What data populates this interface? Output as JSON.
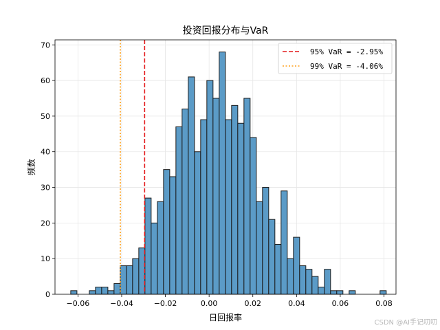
{
  "chart_data": {
    "type": "bar",
    "title": "投资回报分布与VaR",
    "xlabel": "日回报率",
    "ylabel": "频数",
    "xlim": [
      -0.0705,
      0.0855
    ],
    "ylim": [
      0,
      71.4
    ],
    "xticks": [
      -0.06,
      -0.04,
      -0.02,
      0.0,
      0.02,
      0.04,
      0.06,
      0.08
    ],
    "xtick_labels": [
      "−0.06",
      "−0.04",
      "−0.02",
      "0.00",
      "0.02",
      "0.04",
      "0.06",
      "0.08"
    ],
    "yticks": [
      0,
      10,
      20,
      30,
      40,
      50,
      60,
      70
    ],
    "ytick_labels": [
      "0",
      "10",
      "20",
      "30",
      "40",
      "50",
      "60",
      "70"
    ],
    "grid": true,
    "bin_start": -0.0633,
    "bin_width": 0.00283,
    "counts": [
      1,
      0,
      0,
      1,
      2,
      2,
      1,
      3,
      8,
      8,
      10,
      13,
      27,
      20,
      26,
      35,
      33,
      47,
      52,
      61,
      40,
      49,
      60,
      55,
      68,
      49,
      53,
      48,
      55,
      44,
      26,
      30,
      21,
      14,
      29,
      10,
      16,
      8,
      7,
      5,
      2,
      7,
      1,
      1,
      0,
      1,
      0,
      0,
      0,
      0,
      1
    ],
    "bar_color": "#5b9bc7",
    "edge_color": "#1a1a1a",
    "var_lines": [
      {
        "name": "95% VaR = -2.95%",
        "x": -0.0295,
        "color": "#e41a1c",
        "style": "dashed"
      },
      {
        "name": "99% VaR = -4.06%",
        "x": -0.0406,
        "color": "#ff9f1a",
        "style": "dotted"
      }
    ],
    "legend_position": "top-right"
  },
  "watermark": "CSDN @AI手记叨叨"
}
